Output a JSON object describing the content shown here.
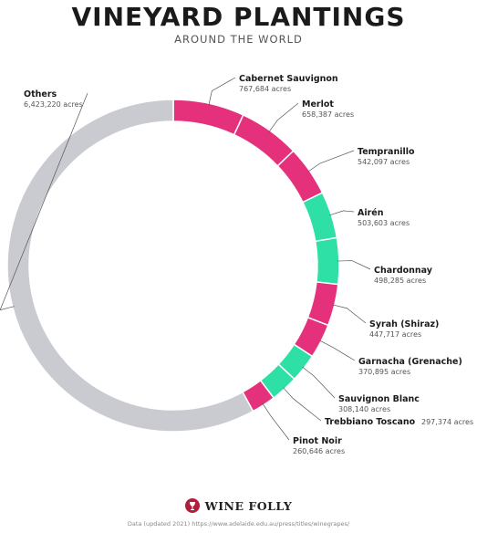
{
  "title": "VINEYARD PLANTINGS",
  "subtitle": "AROUND THE WORLD",
  "chart_data": {
    "type": "pie",
    "style": "donut",
    "unit": "acres",
    "slices": [
      {
        "label": "Cabernet Sauvignon",
        "value": 767684,
        "value_text": "767,684 acres",
        "color": "#e5307c"
      },
      {
        "label": "Merlot",
        "value": 658387,
        "value_text": "658,387 acres",
        "color": "#e5307c"
      },
      {
        "label": "Tempranillo",
        "value": 542097,
        "value_text": "542,097 acres",
        "color": "#e5307c"
      },
      {
        "label": "Airén",
        "value": 503603,
        "value_text": "503,603 acres",
        "color": "#2ee0a6"
      },
      {
        "label": "Chardonnay",
        "value": 498285,
        "value_text": "498,285 acres",
        "color": "#2ee0a6"
      },
      {
        "label": "Syrah (Shiraz)",
        "value": 447717,
        "value_text": "447,717 acres",
        "color": "#e5307c"
      },
      {
        "label": "Garnacha (Grenache)",
        "value": 370895,
        "value_text": "370,895 acres",
        "color": "#e5307c"
      },
      {
        "label": "Sauvignon Blanc",
        "value": 308140,
        "value_text": "308,140 acres",
        "color": "#2ee0a6"
      },
      {
        "label": "Trebbiano Toscano",
        "value": 297374,
        "value_text": "297,374 acres",
        "color": "#2ee0a6"
      },
      {
        "label": "Pinot Noir",
        "value": 260646,
        "value_text": "260,646 acres",
        "color": "#e5307c"
      },
      {
        "label": "Others",
        "value": 6423220,
        "value_text": "6,423,220 acres",
        "color": "#c9cbd1"
      }
    ]
  },
  "footer": {
    "brand": "WINE FOLLY",
    "logo_icon": "wine-glass-icon",
    "source": "Data (updated 2021) https://www.adelaide.edu.au/press/titles/winegrapes/"
  }
}
